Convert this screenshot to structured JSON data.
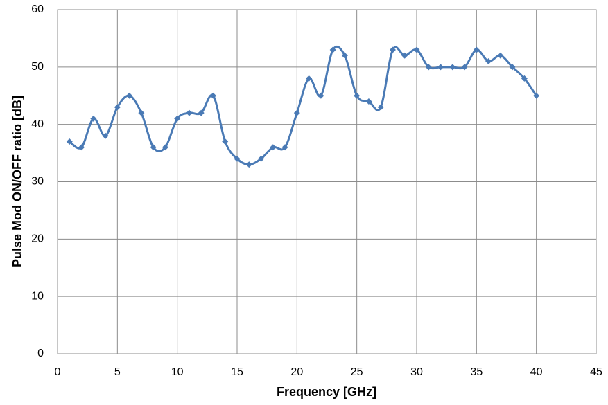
{
  "chart_data": {
    "type": "scatter",
    "x_label": "Frequency [GHz]",
    "y_label": "Pulse Mod ON/OFF ratio [dB]",
    "series": [
      {
        "color": "#4a7ab5",
        "x": [
          1,
          2,
          3,
          4,
          5,
          6,
          7,
          8,
          9,
          10,
          11,
          12,
          13,
          14,
          15,
          16,
          17,
          18,
          19,
          20,
          21,
          22,
          23,
          24,
          25,
          26,
          27,
          28,
          29,
          30,
          31,
          32,
          33,
          34,
          35,
          36,
          37,
          38,
          39,
          40
        ],
        "values": [
          37,
          36,
          41,
          38,
          43,
          45,
          42,
          36,
          36,
          41,
          42,
          42,
          45,
          37,
          34,
          33,
          34,
          36,
          36,
          42,
          48,
          45,
          53,
          52,
          45,
          44,
          43,
          53,
          52,
          53,
          50,
          50,
          50,
          50,
          53,
          51,
          52,
          50,
          48,
          45
        ]
      }
    ],
    "xlim": [
      0,
      45
    ],
    "xticks": [
      0,
      5,
      10,
      15,
      20,
      25,
      30,
      35,
      40,
      45
    ],
    "ylim": [
      0,
      60
    ],
    "yticks": [
      0,
      10,
      20,
      30,
      40,
      50,
      60
    ],
    "grid": true,
    "smooth": true,
    "marker": "diamond"
  }
}
